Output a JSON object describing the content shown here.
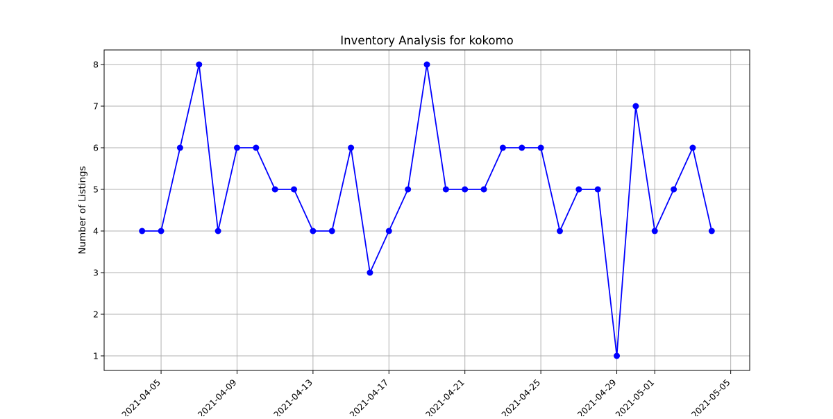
{
  "chart_data": {
    "type": "line",
    "title": "Inventory Analysis for kokomo",
    "xlabel": "",
    "ylabel": "Number of Listings",
    "x_type": "date",
    "xlim": [
      "2021-04-02",
      "2021-05-06"
    ],
    "ylim": [
      0.65,
      8.35
    ],
    "grid": true,
    "x_ticks": [
      "2021-04-05",
      "2021-04-09",
      "2021-04-13",
      "2021-04-17",
      "2021-04-21",
      "2021-04-25",
      "2021-04-29",
      "2021-05-01",
      "2021-05-05"
    ],
    "y_ticks": [
      1,
      2,
      3,
      4,
      5,
      6,
      7,
      8
    ],
    "series": [
      {
        "color": "#0000ff",
        "marker": "circle",
        "points": [
          {
            "x": "2021-04-04",
            "y": 4
          },
          {
            "x": "2021-04-05",
            "y": 4
          },
          {
            "x": "2021-04-06",
            "y": 6
          },
          {
            "x": "2021-04-07",
            "y": 8
          },
          {
            "x": "2021-04-08",
            "y": 4
          },
          {
            "x": "2021-04-09",
            "y": 6
          },
          {
            "x": "2021-04-10",
            "y": 6
          },
          {
            "x": "2021-04-11",
            "y": 5
          },
          {
            "x": "2021-04-12",
            "y": 5
          },
          {
            "x": "2021-04-13",
            "y": 4
          },
          {
            "x": "2021-04-14",
            "y": 4
          },
          {
            "x": "2021-04-15",
            "y": 6
          },
          {
            "x": "2021-04-16",
            "y": 3
          },
          {
            "x": "2021-04-17",
            "y": 4
          },
          {
            "x": "2021-04-18",
            "y": 5
          },
          {
            "x": "2021-04-19",
            "y": 8
          },
          {
            "x": "2021-04-20",
            "y": 5
          },
          {
            "x": "2021-04-21",
            "y": 5
          },
          {
            "x": "2021-04-22",
            "y": 5
          },
          {
            "x": "2021-04-23",
            "y": 6
          },
          {
            "x": "2021-04-24",
            "y": 6
          },
          {
            "x": "2021-04-25",
            "y": 6
          },
          {
            "x": "2021-04-26",
            "y": 4
          },
          {
            "x": "2021-04-27",
            "y": 5
          },
          {
            "x": "2021-04-28",
            "y": 5
          },
          {
            "x": "2021-04-29",
            "y": 1
          },
          {
            "x": "2021-04-30",
            "y": 7
          },
          {
            "x": "2021-05-01",
            "y": 4
          },
          {
            "x": "2021-05-02",
            "y": 5
          },
          {
            "x": "2021-05-03",
            "y": 6
          },
          {
            "x": "2021-05-04",
            "y": 4
          }
        ]
      }
    ]
  }
}
